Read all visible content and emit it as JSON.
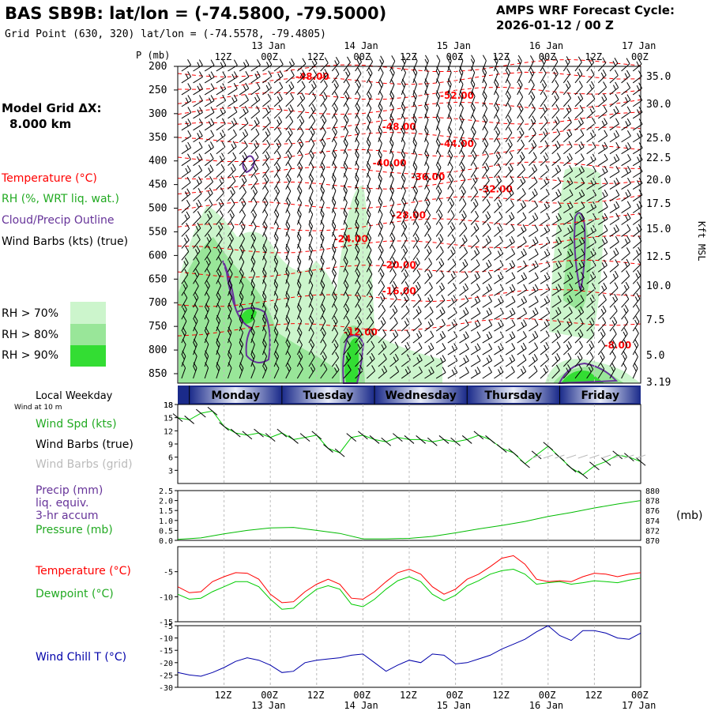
{
  "header": {
    "station_title": "BAS SB9B:  lat/lon = (-74.5800, -79.5000)",
    "grid_point": "Grid Point (630, 320) lat/lon = (-74.5578, -79.4805)",
    "cycle_label": "AMPS WRF Forecast Cycle:",
    "cycle_value": "2026-01-12 / 00  Z"
  },
  "left_labels": {
    "model_grid_line1": "Model Grid ΔX:",
    "model_grid_line2": "8.000 km",
    "temperature": "Temperature (°C)",
    "rh": "RH (%, WRT liq. wat.)",
    "cloud": "Cloud/Precip Outline",
    "wind_barbs": "Wind Barbs (kts) (true)",
    "rh70": "RH > 70%",
    "rh80": "RH > 80%",
    "rh90": "RH > 90%"
  },
  "colors": {
    "temperature": "#ff0000",
    "rh_label": "#22aa22",
    "cloud": "#663399",
    "rh70": "#ccf5cc",
    "rh80": "#99e699",
    "rh90": "#33dd33",
    "dewpoint": "#00cc00",
    "windchill": "#0000aa",
    "pressure": "#00bb00",
    "gridline": "#bbbbbb"
  },
  "time_axis": {
    "top_hours": [
      "12Z",
      "00Z",
      "12Z",
      "00Z",
      "12Z",
      "00Z",
      "12Z",
      "00Z",
      "12Z",
      "00Z"
    ],
    "top_dates": [
      "13 Jan",
      "14 Jan",
      "15 Jan",
      "16 Jan",
      "17 Jan"
    ],
    "bottom_hours": [
      "12Z",
      "00Z",
      "12Z",
      "00Z",
      "12Z",
      "00Z",
      "12Z",
      "00Z",
      "12Z",
      "00Z"
    ],
    "bottom_dates": [
      "13 Jan",
      "14 Jan",
      "15 Jan",
      "16 Jan",
      "17 Jan"
    ]
  },
  "weekday_bar": {
    "label": "Local Weekday",
    "sublabel": "Wind at 10 m",
    "days": [
      "Monday",
      "Tuesday",
      "Wednesday",
      "Thursday",
      "Friday"
    ]
  },
  "chart_data": [
    {
      "type": "heatmap",
      "name": "cross-section",
      "yaxis_label": "P (mb)",
      "y_ticks": [
        200,
        250,
        300,
        350,
        400,
        450,
        500,
        550,
        600,
        650,
        700,
        750,
        800,
        850
      ],
      "right_axis_label": "Kft MSL",
      "right_ticks": [
        "35.0",
        "30.0",
        "25.0",
        "22.5",
        "20.0",
        "17.5",
        "15.0",
        "12.5",
        "10.0",
        "7.5",
        "5.0",
        "3.19"
      ],
      "temperature_labels": [
        {
          "text": "-48.00",
          "time": 14,
          "p": 222
        },
        {
          "text": "-52.00",
          "time": 29,
          "p": 262
        },
        {
          "text": "-48.00",
          "time": 23,
          "p": 328
        },
        {
          "text": "-44.00",
          "time": 29,
          "p": 364
        },
        {
          "text": "-40.00",
          "time": 22,
          "p": 405
        },
        {
          "text": "-36.00",
          "time": 26,
          "p": 434
        },
        {
          "text": "-32.00",
          "time": 33,
          "p": 460
        },
        {
          "text": "-28.00",
          "time": 24,
          "p": 515
        },
        {
          "text": "-24.00",
          "time": 18,
          "p": 565
        },
        {
          "text": "-20.00",
          "time": 23,
          "p": 620
        },
        {
          "text": "-16.00",
          "time": 23,
          "p": 675
        },
        {
          "text": "-12.00",
          "time": 19,
          "p": 762
        },
        {
          "text": "-8.00",
          "time": 46,
          "p": 790
        }
      ]
    },
    {
      "type": "line",
      "name": "wind",
      "legend": [
        "Wind Spd (kts)",
        "Wind Barbs (true)",
        "Wind Barbs (grid)"
      ],
      "y_ticks": [
        3,
        6,
        9,
        12,
        15,
        18
      ],
      "ylim": [
        0,
        18
      ],
      "x_time_hours": [
        0,
        3,
        6,
        9,
        12,
        15,
        18,
        21,
        24,
        27,
        30,
        33,
        36,
        39,
        42,
        45,
        48,
        51,
        54,
        57,
        60,
        63,
        66,
        69,
        72,
        75,
        78,
        81,
        84,
        87,
        90,
        93,
        96,
        99,
        102,
        105,
        108,
        111,
        114,
        117,
        120
      ],
      "series": [
        {
          "name": "Wind Spd (kts)",
          "values": [
            15,
            14.5,
            16,
            16.5,
            13,
            11.5,
            11,
            11.5,
            10.5,
            11.5,
            10,
            10.5,
            11,
            8,
            7,
            10.5,
            11,
            10,
            9.5,
            10.5,
            10,
            10,
            9.5,
            10,
            9.5,
            10,
            11,
            10,
            8,
            7,
            4.5,
            6.5,
            8.5,
            6,
            3.5,
            2,
            4,
            5,
            6.5,
            6,
            5
          ]
        }
      ]
    },
    {
      "type": "line",
      "name": "precip-pressure",
      "legend": [
        "Precip (mm)",
        "liq. equiv.",
        "3-hr accum",
        "Pressure (mb)"
      ],
      "y_ticks_left": [
        "0.0",
        "0.5",
        "1.0",
        "1.5",
        "2.0",
        "2.5"
      ],
      "y_ticks_right": [
        "870",
        "872",
        "874",
        "876",
        "878",
        "880"
      ],
      "right_unit": "(mb)",
      "ylim_left": [
        0,
        2.5
      ],
      "ylim_right": [
        870,
        880
      ],
      "x_time_hours": [
        0,
        6,
        12,
        18,
        24,
        30,
        36,
        42,
        48,
        54,
        60,
        66,
        72,
        78,
        84,
        90,
        96,
        102,
        108,
        114,
        120
      ],
      "series": [
        {
          "name": "Pressure (mb)",
          "values": [
            870.2,
            870.5,
            871.3,
            872.0,
            872.5,
            872.6,
            872.0,
            871.4,
            870.3,
            870.3,
            870.4,
            870.8,
            871.5,
            872.3,
            873.0,
            873.8,
            874.8,
            875.6,
            876.5,
            877.3,
            878.0
          ]
        }
      ]
    },
    {
      "type": "line",
      "name": "temperature",
      "legend": [
        "Temperature (°C)",
        "Dewpoint (°C)"
      ],
      "y_ticks": [
        -15,
        -10,
        -5
      ],
      "ylim": [
        -15,
        0
      ],
      "x_time_hours": [
        0,
        3,
        6,
        9,
        12,
        15,
        18,
        21,
        24,
        27,
        30,
        33,
        36,
        39,
        42,
        45,
        48,
        51,
        54,
        57,
        60,
        63,
        66,
        69,
        72,
        75,
        78,
        81,
        84,
        87,
        90,
        93,
        96,
        99,
        102,
        105,
        108,
        111,
        114,
        117,
        120
      ],
      "series": [
        {
          "name": "Temperature (°C)",
          "values": [
            -8,
            -9.2,
            -9,
            -7,
            -6,
            -5.2,
            -5.3,
            -6.5,
            -9.5,
            -11.2,
            -11,
            -9,
            -7.5,
            -6.5,
            -7.5,
            -10.3,
            -10.5,
            -9,
            -7,
            -5.2,
            -4.5,
            -5.5,
            -8,
            -9.5,
            -8.5,
            -6.5,
            -5.5,
            -4,
            -2.3,
            -1.8,
            -3.5,
            -6.5,
            -7,
            -6.8,
            -7,
            -6,
            -5.3,
            -5.5,
            -6,
            -5.5,
            -5.2
          ]
        },
        {
          "name": "Dewpoint (°C)",
          "values": [
            -9.5,
            -10.5,
            -10.3,
            -9,
            -8,
            -7,
            -7,
            -8,
            -10.5,
            -12.5,
            -12.3,
            -10.3,
            -8.5,
            -7.8,
            -8.5,
            -11.5,
            -12,
            -10.5,
            -8.5,
            -6.8,
            -6,
            -7,
            -9.5,
            -10.8,
            -9.7,
            -7.8,
            -6.8,
            -5.5,
            -4.8,
            -4.5,
            -5.5,
            -7.5,
            -7.2,
            -7,
            -7.5,
            -7.2,
            -6.8,
            -7,
            -7.2,
            -6.7,
            -6.3
          ]
        }
      ]
    },
    {
      "type": "line",
      "name": "windchill",
      "legend": [
        "Wind Chill T (°C)"
      ],
      "y_ticks": [
        -30,
        -25,
        -20,
        -15,
        -10,
        -5
      ],
      "ylim": [
        -30,
        -5
      ],
      "x_time_hours": [
        0,
        3,
        6,
        9,
        12,
        15,
        18,
        21,
        24,
        27,
        30,
        33,
        36,
        39,
        42,
        45,
        48,
        51,
        54,
        57,
        60,
        63,
        66,
        69,
        72,
        75,
        78,
        81,
        84,
        87,
        90,
        93,
        96,
        99,
        102,
        105,
        108,
        111,
        114,
        117,
        120
      ],
      "series": [
        {
          "name": "Wind Chill T (°C)",
          "values": [
            -24,
            -25,
            -25.5,
            -24,
            -22,
            -19.5,
            -18,
            -19,
            -21,
            -24,
            -23.5,
            -20,
            -19,
            -18.5,
            -18,
            -17,
            -16.5,
            -20,
            -23.5,
            -21,
            -19,
            -20,
            -16.5,
            -17,
            -20.5,
            -20,
            -18.5,
            -17,
            -14.5,
            -12.5,
            -10.5,
            -7.5,
            -5,
            -9,
            -11,
            -7,
            -7,
            -8,
            -10,
            -10.5,
            -8
          ]
        }
      ]
    }
  ]
}
